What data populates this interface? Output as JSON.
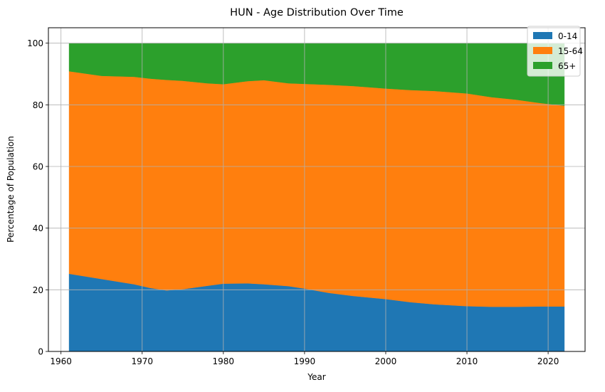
{
  "chart_data": {
    "type": "area",
    "stacked": true,
    "title": "HUN - Age Distribution Over Time",
    "xlabel": "Year",
    "ylabel": "Percentage of Population",
    "xlim": [
      1958.45,
      2024.55
    ],
    "ylim": [
      0,
      105
    ],
    "xticks": [
      1960,
      1970,
      1980,
      1990,
      2000,
      2010,
      2020
    ],
    "yticks": [
      0,
      20,
      40,
      60,
      80,
      100
    ],
    "grid": true,
    "legend_position": "top-right",
    "x": [
      1961,
      1965,
      1969,
      1971,
      1973,
      1975,
      1978,
      1980,
      1983,
      1985,
      1988,
      1990,
      1993,
      1996,
      2000,
      2003,
      2006,
      2010,
      2013,
      2016,
      2019,
      2022
    ],
    "series": [
      {
        "name": "0-14",
        "color": "#1f77b4",
        "values": [
          25.2,
          23.5,
          21.8,
          20.6,
          19.8,
          20.2,
          21.3,
          22.0,
          22.1,
          21.8,
          21.2,
          20.4,
          19.0,
          18.0,
          17.0,
          16.0,
          15.3,
          14.7,
          14.5,
          14.5,
          14.6,
          14.6
        ]
      },
      {
        "name": "15-64",
        "color": "#ff7f0e",
        "values": [
          65.7,
          65.9,
          67.3,
          67.9,
          68.3,
          67.6,
          65.7,
          64.7,
          65.6,
          66.2,
          65.8,
          66.4,
          67.5,
          68.1,
          68.3,
          68.8,
          69.2,
          69.0,
          68.0,
          67.2,
          66.0,
          65.1
        ]
      },
      {
        "name": "65+",
        "color": "#2ca02c",
        "values": [
          9.1,
          10.6,
          10.9,
          11.5,
          11.9,
          12.2,
          13.0,
          13.3,
          12.3,
          12.0,
          13.0,
          13.2,
          13.5,
          13.9,
          14.7,
          15.2,
          15.5,
          16.3,
          17.5,
          18.3,
          19.4,
          20.3
        ]
      }
    ]
  }
}
